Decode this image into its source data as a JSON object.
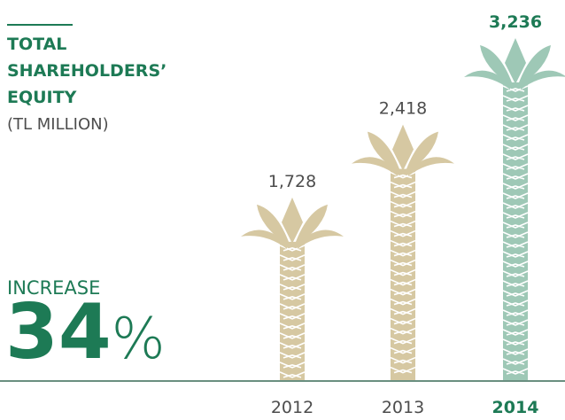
{
  "chart_data": {
    "type": "pictogram-bar",
    "title_lines": [
      "TOTAL",
      "SHAREHOLDERS’",
      "EQUITY"
    ],
    "subtitle": "(TL MILLION)",
    "categories": [
      "2012",
      "2013",
      "2014"
    ],
    "values": [
      1728,
      2418,
      3236
    ],
    "value_labels": [
      "1,728",
      "2,418",
      "3,236"
    ],
    "colors": [
      "#d6c8a2",
      "#d6c8a2",
      "#9ec8b6"
    ],
    "highlight_index": 2,
    "increase": {
      "label": "INCREASE",
      "value": 34,
      "unit": "%"
    }
  }
}
